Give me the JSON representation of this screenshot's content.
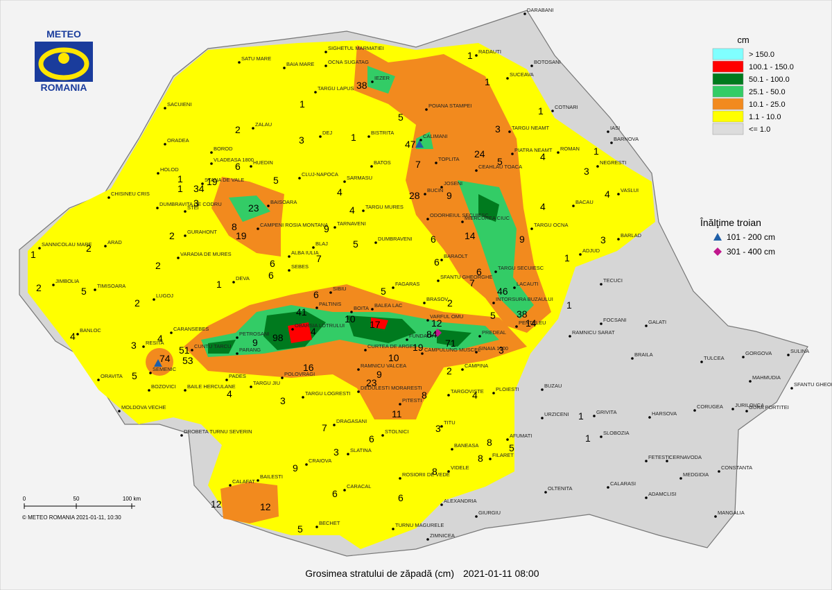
{
  "logo": {
    "top": "METEO",
    "bottom": "ROMANIA"
  },
  "legend": {
    "unit": "cm",
    "items": [
      {
        "label": "> 150.0",
        "color": "#80ffff"
      },
      {
        "label": "100.1 - 150.0",
        "color": "#ff0000"
      },
      {
        "label": "50.1 - 100.0",
        "color": "#007a1e"
      },
      {
        "label": "25.1 - 50.0",
        "color": "#33cc66"
      },
      {
        "label": "10.1 - 25.0",
        "color": "#f28a1e"
      },
      {
        "label": "1.1 - 10.0",
        "color": "#ffff00"
      },
      {
        "label": "<= 1.0",
        "color": "#dcdcdc"
      }
    ]
  },
  "troian": {
    "title": "Înălţime troian",
    "items": [
      {
        "label": "101 - 200 cm",
        "color": "#1f5fa8"
      },
      {
        "label": "301 - 400 cm",
        "color": "#c0168c"
      }
    ]
  },
  "scale": {
    "ticks": [
      "0",
      "50",
      "100 km"
    ]
  },
  "copyright": "© METEO ROMANIA 2021-01-11, 10:30",
  "caption": "Grosimea stratului de zăpadă (cm)",
  "date": "2021-01-11 08:00",
  "cities": [
    "SIGHETUL MARMATIEI",
    "OCNA SUGATAG",
    "SATU MARE",
    "BAIA MARE",
    "TARGU LAPUS",
    "SACUIENI",
    "ZALAU",
    "ORADEA",
    "BOROD",
    "VLADEASA 1800",
    "HOLOD",
    "DEJ",
    "BISTRITA",
    "BATOS",
    "CLUJ-NAPOCA",
    "SARMASU",
    "HUEDIN",
    "TARGU MURES",
    "TARNAVENI",
    "ODORHEIUL SECUIESC",
    "MIERCUREA CIUC",
    "DUMBRAVENI",
    "BLAJ",
    "ALBA IULIA",
    "SEBES",
    "DEVA",
    "ARAD",
    "SANNICOLAU MARE",
    "TIMISOARA",
    "JIMBOLIA",
    "LUGOJ",
    "RESITA",
    "CARANSEBES",
    "SEMENIC",
    "ORAVITA",
    "BAILE HERCULANE",
    "BOZOVICI",
    "MOLDOVA VECHE",
    "DROBETA TURNU SEVERIN",
    "PETROSANI",
    "PARANG",
    "POLOVRAGI",
    "TARGU JIU",
    "TARGU LOGRESTI",
    "RAMNICU VALCEA",
    "DRAGASANI",
    "CRAIOVA",
    "CALAFAT",
    "BAILESTI",
    "BECHET",
    "CARACAL",
    "SLATINA",
    "STOLNICI",
    "PITESTI",
    "TARGOVISTE",
    "PLOIESTI",
    "CAMPINA",
    "SINAIA 1500",
    "PREDEAL",
    "BRASOV",
    "FAGARAS",
    "SIBIU",
    "PALTINIS",
    "BALEA LAC",
    "SFANTU GHEORGHE",
    "TARGU SECUIESC",
    "BARAOLT",
    "INTORSURA BUZAULUI",
    "LACAUTI",
    "PENTELEU",
    "BUZAU",
    "RAMNICU SARAT",
    "FOCSANI",
    "TECUCI",
    "ADJUD",
    "BACAU",
    "BARLAD",
    "VASLUI",
    "IASI",
    "BOTOSANI",
    "SUCEAVA",
    "RADAUTI",
    "DARABANI",
    "COTNARI",
    "TARGU NEAMT",
    "PIATRA NEAMT",
    "ROMAN",
    "NEGRESTI",
    "BARNOVA",
    "TOPLITA",
    "CEAHLAU TOACA",
    "BUCIN",
    "JOSENI",
    "TARGU OCNA",
    "CALIMANI",
    "POIANA STAMPEI",
    "IEZER",
    "GALATI",
    "BRAILA",
    "TULCEA",
    "GORGOVA",
    "SULINA",
    "MAHMUDIA",
    "SFANTU GHEORGHE",
    "JURILOVCA",
    "GURA PORTITEI",
    "CORUGEA",
    "HARSOVA",
    "URZICENI",
    "GRIVITA",
    "SLOBOZIA",
    "FETESTI",
    "CERNAVODA",
    "MEDGIDIA",
    "CONSTANTA",
    "ADAMCLISI",
    "MANGALIA",
    "CALARASI",
    "OLTENITA",
    "GIURGIU",
    "ZIMNICEA",
    "TURNU MAGURELE",
    "ALEXANDRIA",
    "ROSIORII DE VEDE",
    "VIDELE",
    "BANEASA",
    "AFUMATI",
    "FILARET",
    "TITU",
    "CURTEA DE ARGES",
    "CAMPULUNG MUSCEL",
    "FUNDATA",
    "VARFUL OMU",
    "BOITA",
    "OBARSIA LOTRULUI",
    "CUNTU TARCU",
    "PADES",
    "BANLOC",
    "CHISINEU CRIS",
    "DUMBRAVITA DE CODRU",
    "STEI",
    "GURAHONT",
    "VARADIA DE MURES",
    "STANA DE VALE",
    "BAISOARA",
    "CAMPENI ROSIA MONTANA",
    "DEDULESTI MORARESTI"
  ],
  "values": [
    38,
    1,
    5,
    2,
    3,
    1,
    47,
    6,
    19,
    34,
    1,
    1,
    5,
    3,
    23,
    7,
    24,
    28,
    9,
    4,
    4,
    8,
    19,
    9,
    6,
    14,
    2,
    5,
    7,
    2,
    1,
    6,
    6,
    2,
    6,
    6,
    1,
    2,
    5,
    7,
    46,
    38,
    14,
    2,
    6,
    5,
    2,
    5,
    10,
    17,
    12,
    84,
    71,
    41,
    9,
    98,
    4,
    19,
    10,
    16,
    9,
    23,
    11,
    8,
    2,
    4,
    3,
    4,
    4,
    3,
    51,
    53,
    74,
    5,
    4,
    3,
    7,
    6,
    3,
    3,
    9,
    6,
    8,
    6,
    8,
    5,
    8,
    12,
    12,
    5,
    9,
    4,
    4,
    3,
    1,
    3,
    1,
    4,
    5,
    3,
    1,
    1,
    1,
    1,
    1,
    1
  ]
}
